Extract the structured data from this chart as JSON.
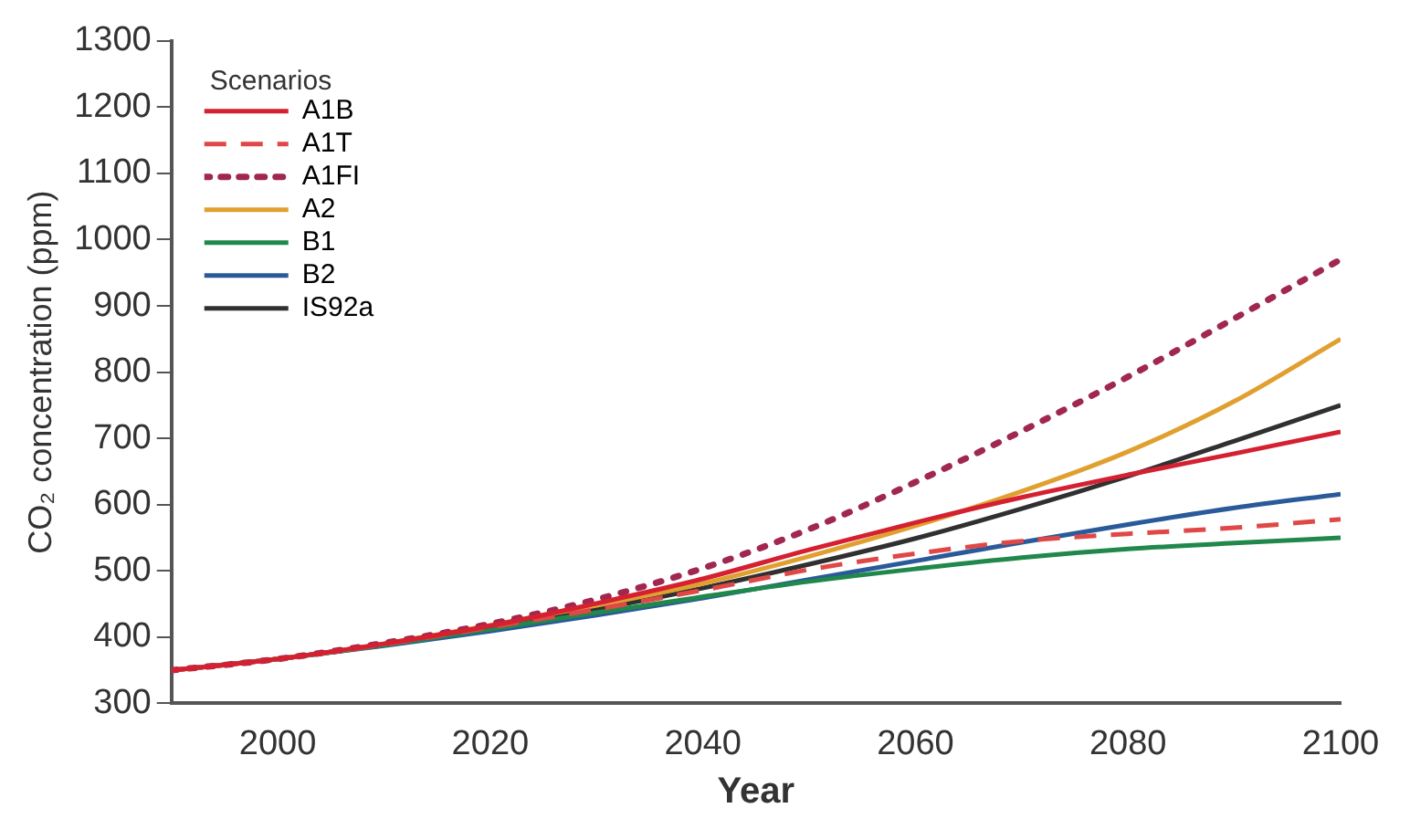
{
  "chart_data": {
    "type": "line",
    "xlabel": "Year",
    "ylabel": "CO₂ concentration (ppm)",
    "legend_title": "Scenarios",
    "legend": "top left",
    "grid": false,
    "marker": "none",
    "x": [
      1990,
      2000,
      2010,
      2020,
      2030,
      2040,
      2050,
      2060,
      2070,
      2080,
      2090,
      2100
    ],
    "xlim": [
      1990,
      2100
    ],
    "xticks": [
      2000,
      2020,
      2040,
      2060,
      2080,
      2100
    ],
    "ylim": [
      300,
      1300
    ],
    "yticks": [
      300,
      400,
      500,
      600,
      700,
      800,
      900,
      1000,
      1100,
      1200,
      1300
    ],
    "series": [
      {
        "name": "A1B",
        "color": "#d42030",
        "line_style": "solid",
        "values": [
          350,
          367,
          390,
          417,
          451,
          488,
          532,
          573,
          611,
          645,
          677,
          710
        ]
      },
      {
        "name": "A1T",
        "color": "#e04848",
        "line_style": "dashed",
        "values": [
          350,
          367,
          389,
          415,
          442,
          471,
          502,
          526,
          545,
          556,
          565,
          578
        ]
      },
      {
        "name": "A1FI",
        "color": "#a02850",
        "line_style": "dotted",
        "values": [
          350,
          367,
          391,
          420,
          457,
          504,
          563,
          634,
          711,
          793,
          881,
          970
        ]
      },
      {
        "name": "A2",
        "color": "#e0a030",
        "line_style": "solid",
        "values": [
          350,
          367,
          390,
          418,
          448,
          481,
          522,
          568,
          620,
          680,
          756,
          850
        ]
      },
      {
        "name": "B1",
        "color": "#20884a",
        "line_style": "solid",
        "values": [
          350,
          367,
          388,
          412,
          437,
          461,
          484,
          503,
          520,
          533,
          542,
          550
        ]
      },
      {
        "name": "B2",
        "color": "#2a5a9a",
        "line_style": "solid",
        "values": [
          350,
          367,
          387,
          409,
          433,
          459,
          487,
          515,
          543,
          570,
          595,
          616
        ]
      },
      {
        "name": "IS92a",
        "color": "#303030",
        "line_style": "solid",
        "values": [
          350,
          367,
          389,
          414,
          442,
          474,
          510,
          549,
          594,
          643,
          696,
          750
        ]
      }
    ]
  }
}
